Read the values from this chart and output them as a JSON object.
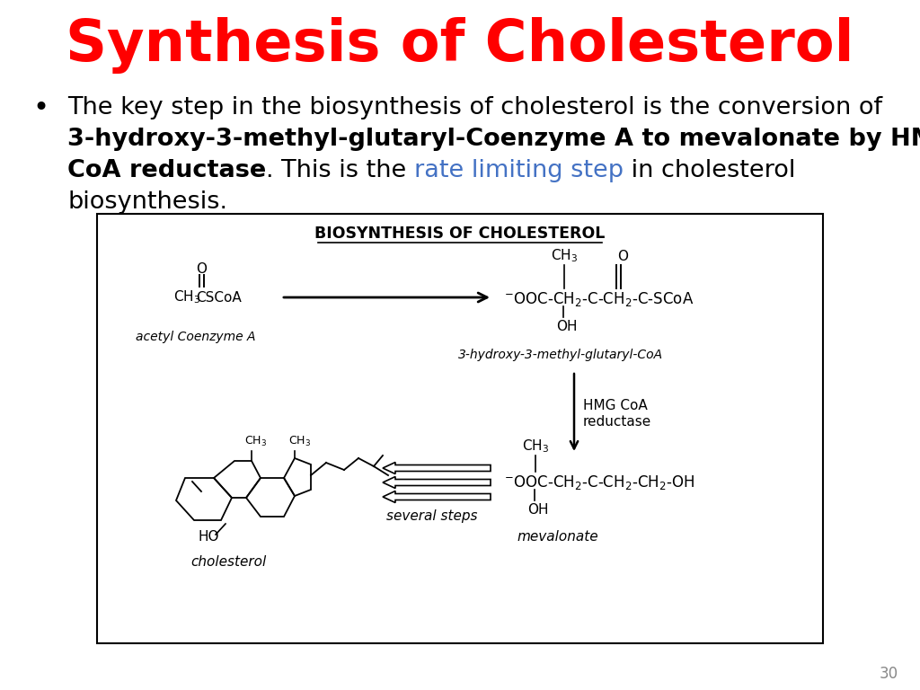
{
  "title": "Synthesis of Cholesterol",
  "title_color": "#FF0000",
  "title_fontsize": 46,
  "bg_color": "#FFFFFF",
  "line1": "The key step in the biosynthesis of cholesterol is the conversion of",
  "line2_bold1": "3-hydroxy-3-methyl-glutaryl-Coenzyme A",
  "line2_mid": " to ",
  "line2_bold2": "mevalonate",
  "line2_mid2": " by ",
  "line2_bold3": "HMG",
  "line3_bold": "CoA reductase",
  "line3_mid": ". This is the ",
  "line3_colored": "rate limiting step",
  "line3_color": "#4472C4",
  "line3_end": " in cholesterol",
  "line4": "biosynthesis.",
  "diagram_title": "BIOSYNTHESIS OF CHOLESTEROL",
  "page_number": "30",
  "text_fontsize": 19.5
}
